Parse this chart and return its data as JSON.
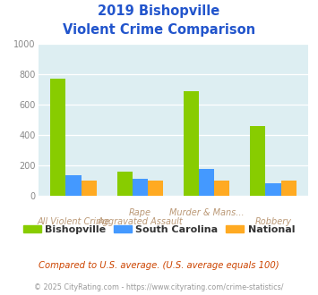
{
  "title_line1": "2019 Bishopville",
  "title_line2": "Violent Crime Comparison",
  "cat_labels_top": [
    "",
    "Rape",
    "Murder & Mans...",
    ""
  ],
  "cat_labels_bot": [
    "All Violent Crime",
    "Aggravated Assault",
    "",
    "Robbery"
  ],
  "bishopville": [
    775,
    160,
    690,
    460
  ],
  "south_carolina": [
    140,
    115,
    180,
    85
  ],
  "national": [
    100,
    100,
    100,
    100
  ],
  "color_bishopville": "#88cc00",
  "color_sc": "#4499ff",
  "color_national": "#ffaa22",
  "ylim": [
    0,
    1000
  ],
  "yticks": [
    0,
    200,
    400,
    600,
    800,
    1000
  ],
  "legend_labels": [
    "Bishopville",
    "South Carolina",
    "National"
  ],
  "footnote1": "Compared to U.S. average. (U.S. average equals 100)",
  "footnote2": "© 2025 CityRating.com - https://www.cityrating.com/crime-statistics/",
  "bg_color": "#ddeef2",
  "fig_bg": "#ffffff",
  "label_color": "#bb9977",
  "title_color": "#2255cc",
  "footnote1_color": "#cc4400",
  "footnote2_color": "#999999"
}
